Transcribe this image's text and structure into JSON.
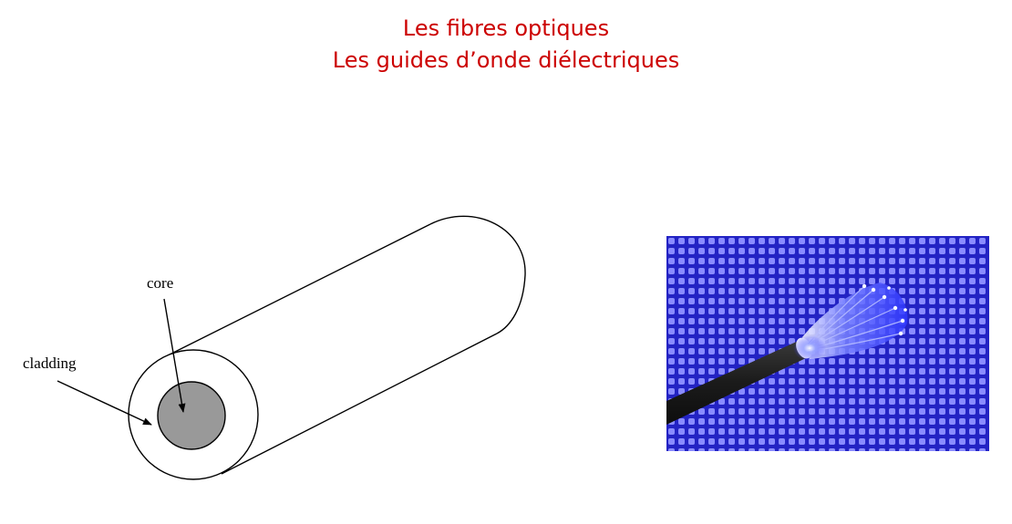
{
  "slide": {
    "title_line1": "Les fibres optiques",
    "title_line2": "Les guides d’onde diélectriques",
    "title_color": "#cc0000"
  },
  "diagram": {
    "labels": {
      "core": "core",
      "cladding": "cladding"
    },
    "colors": {
      "outline": "#000000",
      "core_fill": "#999999",
      "cladding_fill": "#ffffff"
    }
  },
  "photo": {
    "subject": "fiber-optic-cable-bundle",
    "colors": {
      "background": "#2a2ad0",
      "grid_dot": "#8888ff",
      "cable": "#1e1e1e",
      "light_glow": "#4f5bff"
    }
  }
}
